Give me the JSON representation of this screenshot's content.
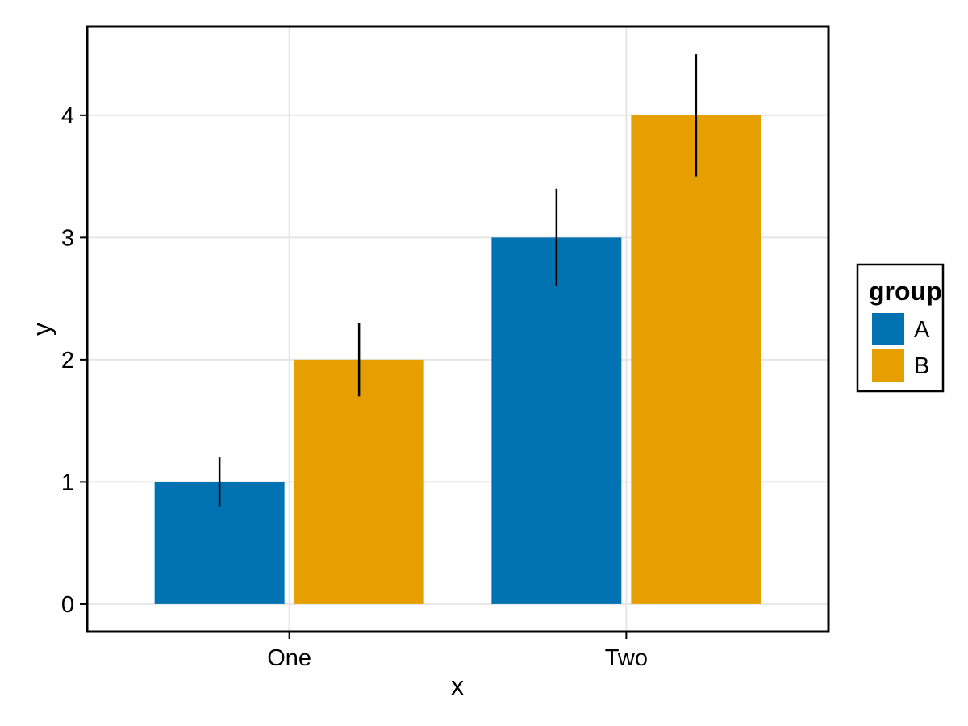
{
  "chart_data": {
    "type": "bar",
    "title": "",
    "xlabel": "x",
    "ylabel": "y",
    "categories": [
      "One",
      "Two"
    ],
    "series": [
      {
        "name": "A",
        "color": "#0072B2",
        "values": [
          1,
          3
        ],
        "error_low": [
          0.8,
          2.6
        ],
        "error_high": [
          1.2,
          3.4
        ]
      },
      {
        "name": "B",
        "color": "#E69F00",
        "values": [
          2,
          4
        ],
        "error_low": [
          1.7,
          3.5
        ],
        "error_high": [
          2.3,
          4.5
        ]
      }
    ],
    "y_ticks": [
      0,
      1,
      2,
      3,
      4
    ],
    "ylim": [
      -0.225,
      4.725
    ],
    "grid": true,
    "error_bar_style": "linerange",
    "legend_position": "right",
    "legend_title": "group"
  },
  "style": {
    "background": "#FFFFFF",
    "panel_background": "#FFFFFF",
    "panel_border_color": "#000000",
    "grid_color": "#E6E6E6",
    "tick_color": "#000000",
    "text_color": "#000000",
    "error_bar_color": "#000000",
    "legend_box_border": "#000000",
    "legend_box_fill": "#FFFFFF"
  }
}
